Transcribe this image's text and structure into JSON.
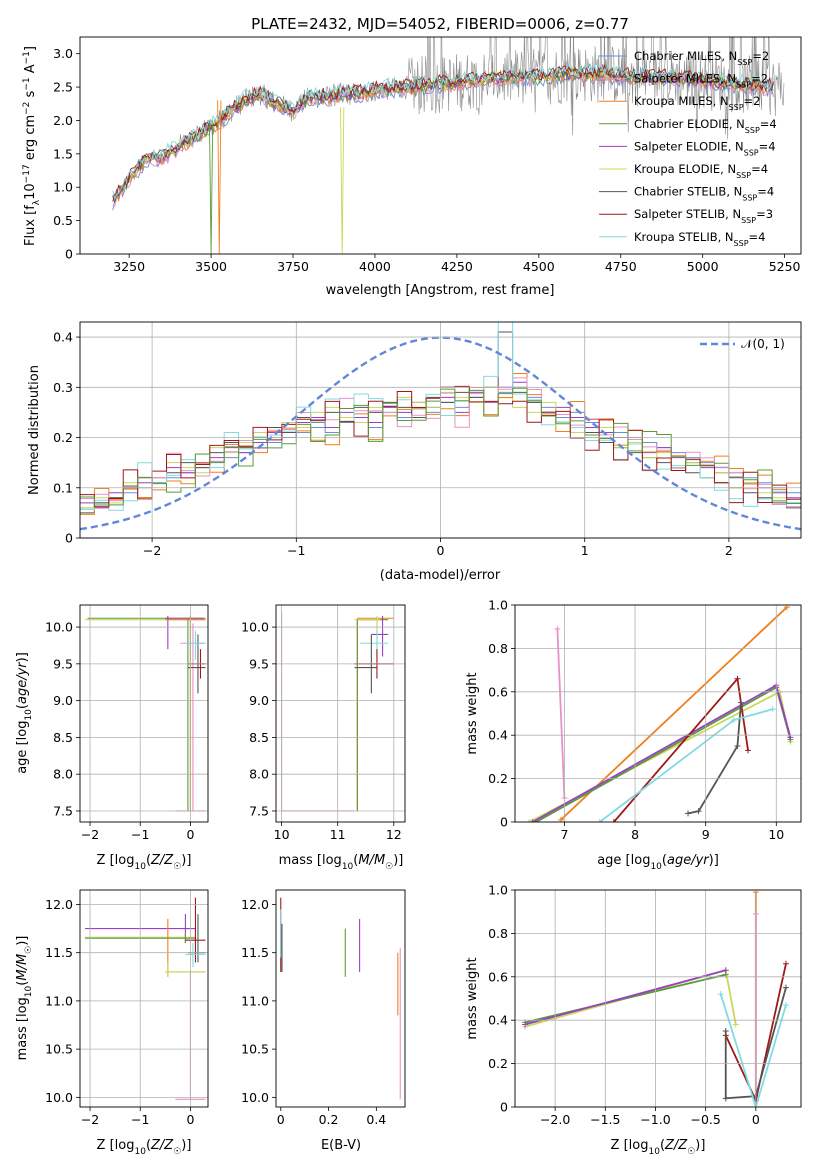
{
  "figure": {
    "title": "PLATE=2432, MJD=54052, FIBERID=0006, z=0.77"
  },
  "colors": {
    "Chabrier MILES": "#6b8fd4",
    "Salpeter MILES": "#e891c6",
    "Kroupa MILES": "#f07f1e",
    "Chabrier ELODIE": "#5a9a3a",
    "Salpeter ELODIE": "#9b3fc4",
    "Kroupa ELODIE": "#c7d85a",
    "Chabrier STELIB": "#555555",
    "Salpeter STELIB": "#a01818",
    "Kroupa STELIB": "#80dbe4"
  },
  "chart_data": [
    {
      "id": "spectrum",
      "type": "line",
      "xlabel": "wavelength [Angstrom, rest frame]",
      "ylabel": "Flux [f_λ10^-17 erg cm^-2 s^-1 A^-1]",
      "xlim": [
        3100,
        5300
      ],
      "ylim": [
        0,
        3.25
      ],
      "xticks": [
        3250,
        3500,
        3750,
        4000,
        4250,
        4500,
        4750,
        5000,
        5250
      ],
      "yticks": [
        0.0,
        0.5,
        1.0,
        1.5,
        2.0,
        2.5,
        3.0
      ],
      "grid": false,
      "legend_position": "top-right",
      "legend": [
        {
          "label": "Chabrier MILES, N",
          "sub": "SSP",
          "suffix": "=2"
        },
        {
          "label": "Salpeter MILES, N",
          "sub": "SSP",
          "suffix": "=2"
        },
        {
          "label": "Kroupa MILES, N",
          "sub": "SSP",
          "suffix": "=2"
        },
        {
          "label": "Chabrier ELODIE, N",
          "sub": "SSP",
          "suffix": "=4"
        },
        {
          "label": "Salpeter ELODIE, N",
          "sub": "SSP",
          "suffix": "=4"
        },
        {
          "label": "Kroupa ELODIE, N",
          "sub": "SSP",
          "suffix": "=4"
        },
        {
          "label": "Chabrier STELIB, N",
          "sub": "SSP",
          "suffix": "=4"
        },
        {
          "label": "Salpeter STELIB, N",
          "sub": "SSP",
          "suffix": "=3"
        },
        {
          "label": "Kroupa STELIB, N",
          "sub": "SSP",
          "suffix": "=4"
        }
      ],
      "model_continuum": {
        "x": [
          3200,
          3260,
          3300,
          3350,
          3400,
          3450,
          3500,
          3550,
          3600,
          3650,
          3700,
          3750,
          3800,
          3850,
          3900,
          3950,
          4000,
          4100,
          4200,
          4300,
          4400,
          4500,
          4600,
          4700,
          4800,
          4900,
          5000,
          5100,
          5200
        ],
        "y": [
          0.8,
          1.2,
          1.4,
          1.45,
          1.6,
          1.75,
          1.9,
          2.1,
          2.3,
          2.4,
          2.25,
          2.15,
          2.35,
          2.35,
          2.4,
          2.4,
          2.45,
          2.5,
          2.55,
          2.6,
          2.65,
          2.65,
          2.7,
          2.7,
          2.65,
          2.65,
          2.6,
          2.55,
          2.5
        ]
      },
      "data_spectrum_note": "noisy observed spectrum drawn in gray from 3400 to 5250"
    },
    {
      "id": "residuals",
      "type": "step",
      "xlabel": "(data-model)/error",
      "ylabel": "Normed distribution",
      "xlim": [
        -2.5,
        2.5
      ],
      "ylim": [
        0,
        0.43
      ],
      "xticks": [
        -2,
        -1,
        0,
        1,
        2
      ],
      "yticks": [
        0.0,
        0.1,
        0.2,
        0.3,
        0.4
      ],
      "grid": true,
      "legend_position": "top-right",
      "legend": [
        {
          "label": "𝒩(0, 1)"
        }
      ],
      "bin_edges_start": -2.5,
      "bin_width": 0.1,
      "series": [
        {
          "key": "Chabrier MILES",
          "values": [
            0.06,
            0.07,
            0.08,
            0.09,
            0.1,
            0.11,
            0.12,
            0.13,
            0.14,
            0.15,
            0.16,
            0.17,
            0.18,
            0.19,
            0.2,
            0.21,
            0.22,
            0.21,
            0.23,
            0.24,
            0.22,
            0.25,
            0.24,
            0.26,
            0.25,
            0.27,
            0.26,
            0.28,
            0.27,
            0.29,
            0.3,
            0.28,
            0.26,
            0.24,
            0.25,
            0.23,
            0.22,
            0.21,
            0.2,
            0.19,
            0.18,
            0.17,
            0.16,
            0.15,
            0.14,
            0.13,
            0.12,
            0.11,
            0.1,
            0.09
          ]
        },
        {
          "key": "Salpeter ELODIE",
          "values": [
            0.07,
            0.06,
            0.09,
            0.1,
            0.11,
            0.12,
            0.14,
            0.13,
            0.15,
            0.16,
            0.18,
            0.17,
            0.19,
            0.21,
            0.2,
            0.23,
            0.24,
            0.22,
            0.25,
            0.24,
            0.23,
            0.26,
            0.25,
            0.27,
            0.26,
            0.28,
            0.25,
            0.29,
            0.27,
            0.3,
            0.31,
            0.27,
            0.25,
            0.26,
            0.24,
            0.22,
            0.21,
            0.2,
            0.19,
            0.17,
            0.18,
            0.16,
            0.15,
            0.14,
            0.13,
            0.12,
            0.11,
            0.1,
            0.09,
            0.08
          ]
        },
        {
          "key": "Chabrier STELIB",
          "values": [
            0.05,
            0.07,
            0.08,
            0.1,
            0.12,
            0.11,
            0.13,
            0.15,
            0.14,
            0.17,
            0.19,
            0.18,
            0.2,
            0.22,
            0.21,
            0.24,
            0.23,
            0.25,
            0.24,
            0.26,
            0.25,
            0.27,
            0.26,
            0.24,
            0.28,
            0.27,
            0.29,
            0.28,
            0.3,
            0.41,
            0.29,
            0.27,
            0.25,
            0.23,
            0.22,
            0.21,
            0.19,
            0.18,
            0.17,
            0.16,
            0.15,
            0.14,
            0.13,
            0.12,
            0.11,
            0.1,
            0.09,
            0.08,
            0.07,
            0.06
          ]
        },
        {
          "key": "Kroupa ELODIE",
          "values": [
            0.06,
            0.08,
            0.07,
            0.11,
            0.1,
            0.12,
            0.15,
            0.14,
            0.13,
            0.18,
            0.17,
            0.19,
            0.21,
            0.2,
            0.23,
            0.22,
            0.25,
            0.26,
            0.24,
            0.23,
            0.26,
            0.25,
            0.28,
            0.27,
            0.26,
            0.29,
            0.28,
            0.27,
            0.3,
            0.28,
            0.26,
            0.25,
            0.27,
            0.23,
            0.21,
            0.2,
            0.22,
            0.18,
            0.19,
            0.16,
            0.17,
            0.14,
            0.15,
            0.12,
            0.13,
            0.1,
            0.11,
            0.09,
            0.08,
            0.07
          ]
        }
      ],
      "normal_curve": {
        "mean": 0,
        "sigma": 1
      }
    },
    {
      "id": "z-vs-age",
      "type": "errorbar",
      "xlabel": "Z [log10(Z/Z☉)]",
      "ylabel": "age [log10(age/yr)]",
      "xlim": [
        -2.2,
        0.35
      ],
      "ylim": [
        7.35,
        10.3
      ],
      "xticks": [
        -2,
        -1,
        0
      ],
      "yticks": [
        7.5,
        8.0,
        8.5,
        9.0,
        9.5,
        10.0
      ],
      "grid": true
    },
    {
      "id": "mass-vs-age",
      "type": "errorbar",
      "xlabel": "mass [log10(M/M☉)]",
      "ylabel": "",
      "xlim": [
        9.9,
        12.2
      ],
      "ylim": [
        7.35,
        10.3
      ],
      "xticks": [
        10,
        11,
        12
      ],
      "yticks": [
        7.5,
        8.0,
        8.5,
        9.0,
        9.5,
        10.0
      ],
      "grid": true
    },
    {
      "id": "age-weight",
      "type": "line",
      "xlabel": "age [log10(age/yr)]",
      "ylabel": "mass weight",
      "xlim": [
        6.3,
        10.35
      ],
      "ylim": [
        0,
        1.0
      ],
      "xticks": [
        7,
        8,
        9,
        10
      ],
      "yticks": [
        0.0,
        0.2,
        0.4,
        0.6,
        0.8,
        1.0
      ],
      "grid": true,
      "series": [
        {
          "key": "Kroupa MILES",
          "x": [
            6.95,
            10.15
          ],
          "y": [
            0.01,
            0.99
          ]
        },
        {
          "key": "Salpeter MILES",
          "x": [
            6.9,
            7.0
          ],
          "y": [
            0.89,
            0.11
          ]
        },
        {
          "key": "Kroupa ELODIE",
          "x": [
            6.5,
            10.05,
            10.2
          ],
          "y": [
            0.0,
            0.6,
            0.37
          ]
        },
        {
          "key": "Chabrier ELODIE",
          "x": [
            6.6,
            10.0,
            10.2
          ],
          "y": [
            0.0,
            0.62,
            0.38
          ]
        },
        {
          "key": "Salpeter ELODIE",
          "x": [
            6.55,
            10.0,
            10.2
          ],
          "y": [
            0.0,
            0.63,
            0.39
          ]
        },
        {
          "key": "Salpeter STELIB",
          "x": [
            7.7,
            9.45,
            9.6
          ],
          "y": [
            0.0,
            0.66,
            0.33
          ]
        },
        {
          "key": "Chabrier STELIB",
          "x": [
            8.75,
            8.9,
            9.45,
            9.5
          ],
          "y": [
            0.04,
            0.05,
            0.35,
            0.55
          ]
        },
        {
          "key": "Kroupa STELIB",
          "x": [
            7.5,
            9.4,
            9.95
          ],
          "y": [
            0.0,
            0.47,
            0.52
          ]
        }
      ]
    },
    {
      "id": "z-vs-mass",
      "type": "errorbar",
      "xlabel": "Z [log10(Z/Z☉)]",
      "ylabel": "mass [log10(M/M☉)]",
      "xlim": [
        -2.2,
        0.35
      ],
      "ylim": [
        9.9,
        12.15
      ],
      "xticks": [
        -2,
        -1,
        0
      ],
      "yticks": [
        10.0,
        10.5,
        11.0,
        11.5,
        12.0
      ],
      "grid": true
    },
    {
      "id": "ebv-vs-mass",
      "type": "errorbar",
      "xlabel": "E(B-V)",
      "ylabel": "",
      "xlim": [
        -0.02,
        0.52
      ],
      "ylim": [
        9.9,
        12.15
      ],
      "xticks": [
        0.0,
        0.2,
        0.4
      ],
      "yticks": [
        10.0,
        10.5,
        11.0,
        11.5,
        12.0
      ],
      "grid": false
    },
    {
      "id": "z-weight",
      "type": "line",
      "xlabel": "Z [log10(Z/Z☉)]",
      "ylabel": "mass weight",
      "xlim": [
        -2.4,
        0.45
      ],
      "ylim": [
        0,
        1.0
      ],
      "xticks": [
        -2.0,
        -1.5,
        -1.0,
        -0.5,
        0.0
      ],
      "yticks": [
        0.0,
        0.2,
        0.4,
        0.6,
        0.8,
        1.0
      ],
      "grid": true,
      "series": [
        {
          "key": "Kroupa ELODIE",
          "x": [
            -2.3,
            -0.3,
            -0.2
          ],
          "y": [
            0.37,
            0.63,
            0.38
          ]
        },
        {
          "key": "Chabrier ELODIE",
          "x": [
            -2.3,
            -0.3
          ],
          "y": [
            0.39,
            0.61
          ]
        },
        {
          "key": "Salpeter ELODIE",
          "x": [
            -2.3,
            -0.3
          ],
          "y": [
            0.38,
            0.63
          ]
        },
        {
          "key": "Kroupa MILES",
          "x": [
            0.0,
            0.0
          ],
          "y": [
            0.0,
            0.99
          ]
        },
        {
          "key": "Salpeter MILES",
          "x": [
            0.0,
            0.0
          ],
          "y": [
            0.0,
            0.89
          ]
        },
        {
          "key": "Salpeter STELIB",
          "x": [
            -0.3,
            0.0,
            0.3
          ],
          "y": [
            0.33,
            0.03,
            0.66
          ]
        },
        {
          "key": "Chabrier STELIB",
          "x": [
            -0.3,
            -0.3,
            0.0,
            0.3
          ],
          "y": [
            0.35,
            0.04,
            0.05,
            0.55
          ]
        },
        {
          "key": "Kroupa STELIB",
          "x": [
            -0.35,
            0.0,
            0.3
          ],
          "y": [
            0.52,
            0.0,
            0.47
          ]
        }
      ]
    }
  ]
}
